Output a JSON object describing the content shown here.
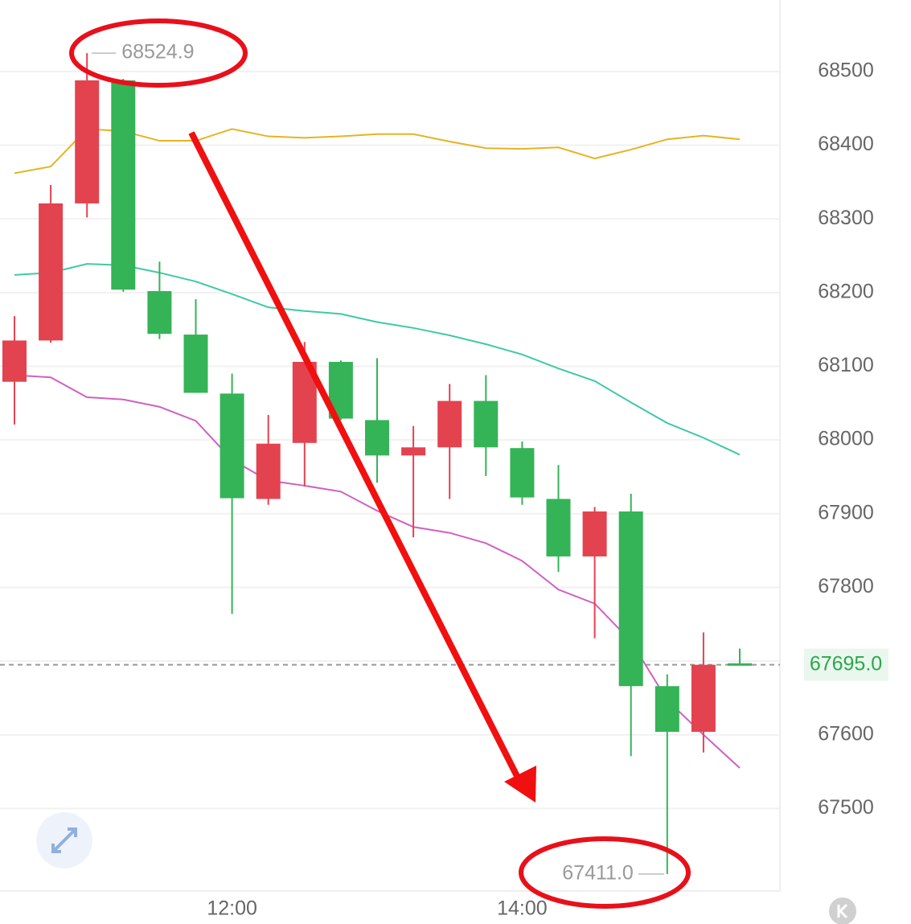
{
  "chart_data": {
    "type": "candlestick",
    "x": [
      null,
      null,
      null,
      null,
      null,
      null,
      "12:00",
      null,
      null,
      null,
      null,
      null,
      null,
      null,
      "14:00",
      null,
      null,
      null,
      null,
      null,
      null
    ],
    "open": [
      68079,
      68135,
      68321,
      68488,
      68202,
      68143,
      68063,
      67920,
      67996,
      68106,
      68027,
      67979,
      67990,
      68053,
      67989,
      67920,
      67842,
      67903,
      67666,
      67604,
      67697
    ],
    "high": [
      68168,
      68346,
      68524.9,
      68490,
      68242,
      68191,
      68090,
      68034,
      68133,
      68108,
      68111,
      68019,
      68076,
      68088,
      67998,
      67966,
      67909,
      67927,
      67682,
      67739,
      67717
    ],
    "low": [
      68021,
      68132,
      68302,
      68201,
      68137,
      68064,
      67764,
      67912,
      67937,
      68027,
      67942,
      67868,
      67920,
      67951,
      67912,
      67821,
      67731,
      67571,
      67411,
      67576,
      67694
    ],
    "close": [
      68135,
      68321,
      68488,
      68204,
      68144,
      68064,
      67921,
      67995,
      68106,
      68029,
      67979,
      67990,
      68053,
      67990,
      67922,
      67842,
      67903,
      67666,
      67604,
      67695,
      67695
    ],
    "up_color": "#e2434f",
    "down_color": "#35b357",
    "lines": [
      {
        "color": "#e6b422",
        "values": [
          68362,
          68371,
          68422,
          68419,
          68406,
          68406,
          68422,
          68412,
          68410,
          68412,
          68415,
          68415,
          68405,
          68396,
          68395,
          68397,
          68382,
          68394,
          68408,
          68413,
          68408
        ]
      },
      {
        "color": "#3fc9a6",
        "values": [
          68224,
          68227,
          68239,
          68237,
          68227,
          68215,
          68198,
          68180,
          68175,
          68171,
          68160,
          68152,
          68142,
          68130,
          68116,
          68097,
          68080,
          68051,
          68023,
          68003,
          67980
        ]
      },
      {
        "color": "#d060c0",
        "values": [
          68088,
          68085,
          68058,
          68055,
          68045,
          68026,
          67973,
          67945,
          67938,
          67930,
          67904,
          67882,
          67874,
          67860,
          67836,
          67797,
          67778,
          67727,
          67647,
          67600,
          67555
        ]
      }
    ],
    "ylim": [
      67388,
      68597
    ],
    "yticks": [
      67500,
      67600,
      67700,
      67800,
      67900,
      68000,
      68100,
      68200,
      68300,
      68400,
      68500
    ],
    "grid": true,
    "annotations": [
      {
        "value": 68524.9,
        "label": "68524.9"
      },
      {
        "value": 67411,
        "label": "67411.0"
      }
    ],
    "last_price": {
      "value": 67695,
      "label": "67695.0"
    }
  }
}
